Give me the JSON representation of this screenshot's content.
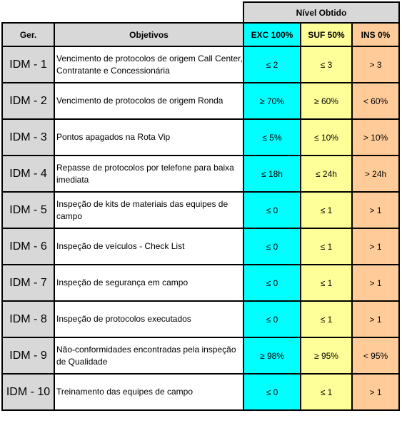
{
  "header": {
    "nivel_obtido": "Nível Obtido",
    "col_ger": "Ger.",
    "col_objetivos": "Objetivos",
    "col_exc": "EXC 100%",
    "col_suf": "SUF 50%",
    "col_ins": "INS 0%"
  },
  "colors": {
    "header_gray": "#d8d8d8",
    "exc": "#00ffff",
    "suf": "#ffff99",
    "ins": "#ffcc99"
  },
  "rows": [
    {
      "id": "IDM - 1",
      "objetivo": "Vencimento de protocolos de origem Call Center, Contratante e Concessionária",
      "exc": "≤ 2",
      "suf": "≤ 3",
      "ins": "> 3"
    },
    {
      "id": "IDM - 2",
      "objetivo": "Vencimento de protocolos de origem Ronda",
      "exc": "≥ 70%",
      "suf": "≥ 60%",
      "ins": "< 60%"
    },
    {
      "id": "IDM - 3",
      "objetivo": "Pontos apagados na Rota Vip",
      "exc": "≤ 5%",
      "suf": "≤ 10%",
      "ins": "> 10%"
    },
    {
      "id": "IDM - 4",
      "objetivo": "Repasse de protocolos por telefone para baixa imediata",
      "exc": "≤ 18h",
      "suf": "≤ 24h",
      "ins": "> 24h"
    },
    {
      "id": "IDM - 5",
      "objetivo": "Inspeção de kits de materiais das equipes de campo",
      "exc": "≤  0",
      "suf": "≤  1",
      "ins": "> 1"
    },
    {
      "id": "IDM - 6",
      "objetivo": "Inspeção de veículos - Check List",
      "exc": "≤  0",
      "suf": "≤  1",
      "ins": "> 1"
    },
    {
      "id": "IDM - 7",
      "objetivo": "Inspeção de segurança em campo",
      "exc": "≤  0",
      "suf": "≤  1",
      "ins": "> 1"
    },
    {
      "id": "IDM - 8",
      "objetivo": "Inspeção de protocolos executados",
      "exc": "≤  0",
      "suf": "≤  1",
      "ins": "> 1"
    },
    {
      "id": "IDM - 9",
      "objetivo": "Não-conformidades encontradas pela inspeção de Qualidade",
      "exc": "≥ 98%",
      "suf": "≥ 95%",
      "ins": "< 95%"
    },
    {
      "id": "IDM - 10",
      "objetivo": "Treinamento das equipes de campo",
      "exc": "≤  0",
      "suf": "≤  1",
      "ins": "> 1"
    }
  ]
}
